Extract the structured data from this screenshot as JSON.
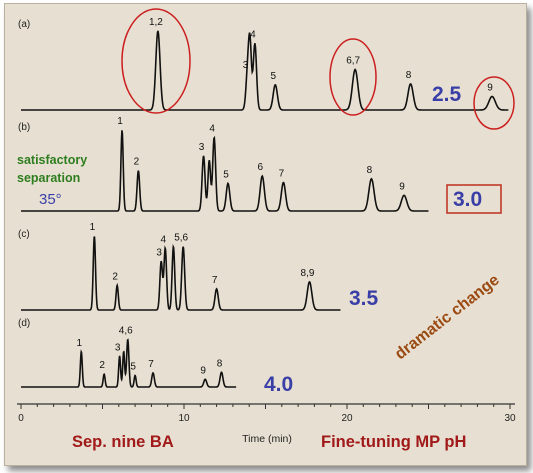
{
  "chart_data": {
    "type": "line",
    "title": "",
    "xlabel": "Time (min)",
    "ylabel": "",
    "xlim": [
      0,
      30
    ],
    "xticks": [
      0,
      10,
      20,
      30
    ],
    "grid": false,
    "panels": [
      {
        "label": "(a)",
        "pH": "2.5",
        "x_end": 29.9,
        "peaks": [
          {
            "label": "1,2",
            "t": [
              8.4
            ],
            "h": [
              0.88
            ],
            "w": 0.13
          },
          {
            "label": "3",
            "t": [
              13.9
            ],
            "h": [
              0.4
            ],
            "w": 0.1
          },
          {
            "label": "4",
            "t": [
              14.35
            ],
            "h": [
              0.74
            ],
            "w": 0.1
          },
          {
            "label": "5",
            "t": [
              15.6
            ],
            "h": [
              0.28
            ],
            "w": 0.13
          },
          {
            "label": "6,7",
            "t": [
              20.5
            ],
            "h": [
              0.45
            ],
            "w": 0.17
          },
          {
            "label": "8",
            "t": [
              23.9
            ],
            "h": [
              0.29
            ],
            "w": 0.16
          },
          {
            "label": "9",
            "t": [
              28.9
            ],
            "h": [
              0.15
            ],
            "w": 0.2
          }
        ],
        "extra_peaks": [
          {
            "t": 14.05,
            "h": 0.7,
            "w": 0.09
          }
        ]
      },
      {
        "label": "(b)",
        "pH": "3.0",
        "x_end": 25.0,
        "peaks": [
          {
            "label": "1",
            "t": [
              6.2
            ],
            "h": [
              0.88
            ],
            "w": 0.07
          },
          {
            "label": "2",
            "t": [
              7.2
            ],
            "h": [
              0.44
            ],
            "w": 0.08
          },
          {
            "label": "3",
            "t": [
              11.2
            ],
            "h": [
              0.6
            ],
            "w": 0.09
          },
          {
            "label": "4",
            "t": [
              11.85
            ],
            "h": [
              0.8
            ],
            "w": 0.09
          },
          {
            "label": "5",
            "t": [
              12.7
            ],
            "h": [
              0.3
            ],
            "w": 0.11
          },
          {
            "label": "6",
            "t": [
              14.8
            ],
            "h": [
              0.38
            ],
            "w": 0.13
          },
          {
            "label": "7",
            "t": [
              16.1
            ],
            "h": [
              0.31
            ],
            "w": 0.13
          },
          {
            "label": "8",
            "t": [
              21.5
            ],
            "h": [
              0.35
            ],
            "w": 0.16
          },
          {
            "label": "9",
            "t": [
              23.5
            ],
            "h": [
              0.17
            ],
            "w": 0.17
          }
        ],
        "extra_peaks": [
          {
            "t": 11.55,
            "h": 0.55,
            "w": 0.08
          }
        ]
      },
      {
        "label": "(c)",
        "pH": "3.5",
        "x_end": 19.6,
        "peaks": [
          {
            "label": "1",
            "t": [
              4.5
            ],
            "h": [
              0.84
            ],
            "w": 0.07
          },
          {
            "label": "2",
            "t": [
              5.9
            ],
            "h": [
              0.28
            ],
            "w": 0.07
          },
          {
            "label": "3",
            "t": [
              8.6
            ],
            "h": [
              0.55
            ],
            "w": 0.08
          },
          {
            "label": "4",
            "t": [
              8.85
            ],
            "h": [
              0.7
            ],
            "w": 0.08
          },
          {
            "label": "5,6",
            "t": [
              9.95
            ],
            "h": [
              0.72
            ],
            "w": 0.09
          },
          {
            "label": "7",
            "t": [
              12.0
            ],
            "h": [
              0.24
            ],
            "w": 0.1
          },
          {
            "label": "8,9",
            "t": [
              17.7
            ],
            "h": [
              0.32
            ],
            "w": 0.14
          }
        ],
        "extra_peaks": [
          {
            "t": 9.35,
            "h": 0.72,
            "w": 0.08
          }
        ]
      },
      {
        "label": "(d)",
        "pH": "4.0",
        "x_end": 13.2,
        "peaks": [
          {
            "label": "1",
            "t": [
              3.7
            ],
            "h": [
              0.55
            ],
            "w": 0.06
          },
          {
            "label": "2",
            "t": [
              5.1
            ],
            "h": [
              0.2
            ],
            "w": 0.06
          },
          {
            "label": "3",
            "t": [
              6.05
            ],
            "h": [
              0.48
            ],
            "w": 0.06
          },
          {
            "label": "4,6",
            "t": [
              6.55
            ],
            "h": [
              0.74
            ],
            "w": 0.07
          },
          {
            "label": "5",
            "t": [
              7.0
            ],
            "h": [
              0.18
            ],
            "w": 0.06
          },
          {
            "label": "7",
            "t": [
              8.1
            ],
            "h": [
              0.22
            ],
            "w": 0.08
          },
          {
            "label": "9",
            "t": [
              11.3
            ],
            "h": [
              0.12
            ],
            "w": 0.09
          },
          {
            "label": "8",
            "t": [
              12.3
            ],
            "h": [
              0.23
            ],
            "w": 0.09
          }
        ],
        "extra_peaks": [
          {
            "t": 6.3,
            "h": 0.55,
            "w": 0.06
          }
        ]
      }
    ]
  },
  "annotations": {
    "satisfactory": "satisfactory separation",
    "satisfactory_line1": "satisfactory",
    "satisfactory_line2": "separation",
    "temperature": "35°",
    "dramatic": "dramatic change",
    "footer_left": "Sep. nine BA",
    "footer_right": "Fine-tuning MP pH"
  },
  "colors": {
    "trace": "#111111",
    "ph_label": "#3a3fa8",
    "circle": "#cc1f1f",
    "box": "#c0392b",
    "green": "#2e7d1e",
    "orange": "#9a4a12",
    "footer": "#a11a1a",
    "background": "#e7e0d2"
  }
}
